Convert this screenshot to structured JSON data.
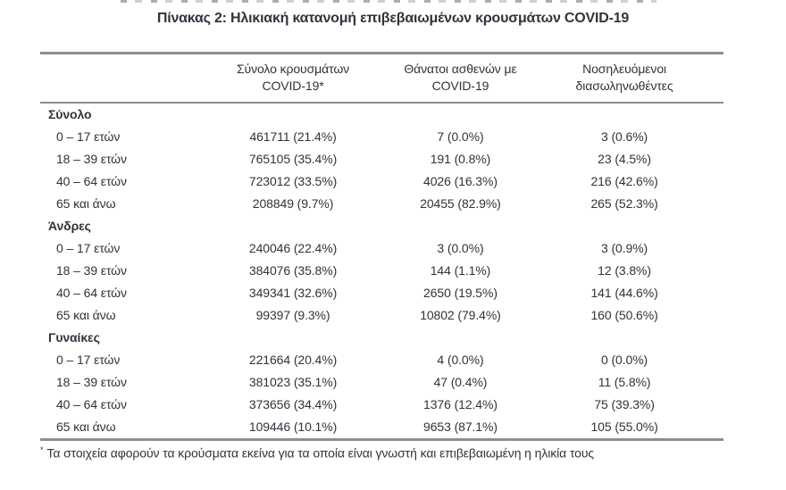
{
  "page": {
    "title": "Πίνακας 2: Ηλικιακή κατανομή επιβεβαιωμένων κρουσμάτων COVID-19",
    "footnote_marker": "*",
    "footnote": "Τα στοιχεία αφορούν τα κρούσματα εκείνα για τα οποία είναι γνωστή και επιβεβαιωμένη η ηλικία τους"
  },
  "colors": {
    "text": "#32323c",
    "rule": "#8e8e8e",
    "background": "#ffffff"
  },
  "table": {
    "columns": [
      {
        "line1": "",
        "line2": ""
      },
      {
        "line1": "Σύνολο κρουσμάτων",
        "line2": "COVID-19*"
      },
      {
        "line1": "Θάνατοι ασθενών με",
        "line2": "COVID-19"
      },
      {
        "line1": "Νοσηλευόμενοι",
        "line2": "διασωληνωθέντες"
      }
    ],
    "sections": [
      {
        "name": "Σύνολο",
        "rows": [
          {
            "age": "0 – 17 ετών",
            "cases": "461711 (21.4%)",
            "deaths": "7 (0.0%)",
            "intubated": "3 (0.6%)"
          },
          {
            "age": "18 – 39 ετών",
            "cases": "765105 (35.4%)",
            "deaths": "191 (0.8%)",
            "intubated": "23 (4.5%)"
          },
          {
            "age": "40 – 64 ετών",
            "cases": "723012 (33.5%)",
            "deaths": "4026 (16.3%)",
            "intubated": "216 (42.6%)"
          },
          {
            "age": "65 και άνω",
            "cases": "208849 (9.7%)",
            "deaths": "20455 (82.9%)",
            "intubated": "265 (52.3%)"
          }
        ]
      },
      {
        "name": "Άνδρες",
        "rows": [
          {
            "age": "0 – 17 ετών",
            "cases": "240046 (22.4%)",
            "deaths": "3 (0.0%)",
            "intubated": "3 (0.9%)"
          },
          {
            "age": "18 – 39 ετών",
            "cases": "384076 (35.8%)",
            "deaths": "144 (1.1%)",
            "intubated": "12 (3.8%)"
          },
          {
            "age": "40 – 64 ετών",
            "cases": "349341 (32.6%)",
            "deaths": "2650 (19.5%)",
            "intubated": "141 (44.6%)"
          },
          {
            "age": "65 και άνω",
            "cases": "99397 (9.3%)",
            "deaths": "10802 (79.4%)",
            "intubated": "160 (50.6%)"
          }
        ]
      },
      {
        "name": "Γυναίκες",
        "rows": [
          {
            "age": "0 – 17 ετών",
            "cases": "221664 (20.4%)",
            "deaths": "4 (0.0%)",
            "intubated": "0 (0.0%)"
          },
          {
            "age": "18 – 39 ετών",
            "cases": "381023 (35.1%)",
            "deaths": "47 (0.4%)",
            "intubated": "11 (5.8%)"
          },
          {
            "age": "40 – 64 ετών",
            "cases": "373656 (34.4%)",
            "deaths": "1376 (12.4%)",
            "intubated": "75 (39.3%)"
          },
          {
            "age": "65 και άνω",
            "cases": "109446 (10.1%)",
            "deaths": "9653 (87.1%)",
            "intubated": "105 (55.0%)"
          }
        ]
      }
    ]
  }
}
